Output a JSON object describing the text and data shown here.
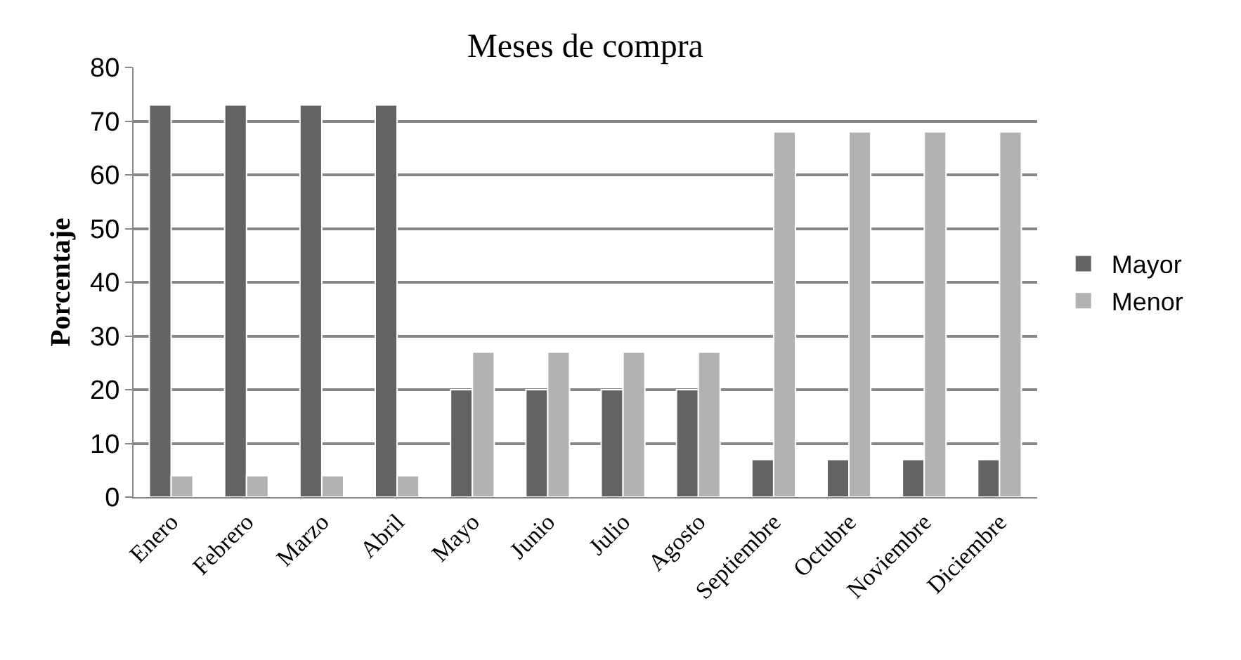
{
  "chart_data": {
    "type": "bar",
    "title": "Meses de compra",
    "ylabel": "Porcentaje",
    "categories": [
      "Enero",
      "Febrero",
      "Marzo",
      "Abril",
      "Mayo",
      "Junio",
      "Julio",
      "Agosto",
      "Septiembre",
      "Octubre",
      "Noviembre",
      "Diciembre"
    ],
    "series": [
      {
        "name": "Mayor",
        "color": "#636363",
        "values": [
          73,
          73,
          73,
          73,
          20,
          20,
          20,
          20,
          7,
          7,
          7,
          7
        ]
      },
      {
        "name": "Menor",
        "color": "#b2b2b2",
        "values": [
          4,
          4,
          4,
          4,
          27,
          27,
          27,
          27,
          68,
          68,
          68,
          68
        ]
      }
    ],
    "ylim": [
      0,
      80
    ],
    "yticks": [
      0,
      10,
      20,
      30,
      40,
      50,
      60,
      70,
      80
    ],
    "grid": "y",
    "legend": "right"
  }
}
